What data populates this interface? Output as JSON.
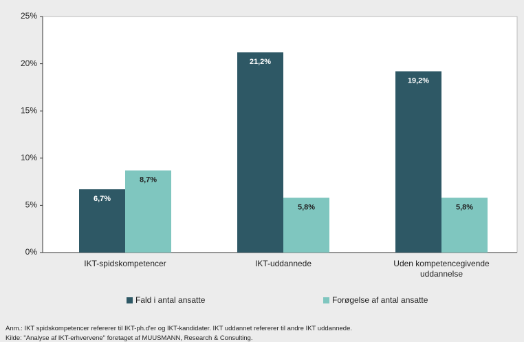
{
  "chart_data": {
    "type": "bar",
    "categories": [
      "IKT-spidskompetencer",
      "IKT-uddannede",
      "Uden kompetencegivende uddannelse"
    ],
    "series": [
      {
        "name": "Fald i antal ansatte",
        "color": "#2e5865",
        "values": [
          6.7,
          21.2,
          19.2
        ],
        "value_labels": [
          "6,7%",
          "21,2%",
          "19,2%"
        ]
      },
      {
        "name": "Forøgelse af antal ansatte",
        "color": "#7fc6bf",
        "values": [
          8.7,
          5.8,
          5.8
        ],
        "value_labels": [
          "8,7%",
          "5,8%",
          "5,8%"
        ]
      }
    ],
    "ylim": [
      0,
      25
    ],
    "yticks": [
      {
        "value": 0,
        "label": "0%"
      },
      {
        "value": 5,
        "label": "5%"
      },
      {
        "value": 10,
        "label": "10%"
      },
      {
        "value": 15,
        "label": "15%"
      },
      {
        "value": 20,
        "label": "20%"
      },
      {
        "value": 25,
        "label": "25%"
      }
    ],
    "legend": "bottom",
    "notes": [
      "Anm.: IKT spidskompetencer  refererer til IKT-ph.d'er og IKT-kandidater. IKT uddannet refererer til andre IKT uddannede.",
      "Kilde:  \"Analyse af IKT-erhvervene\" foretaget af MUUSMANN, Research & Consulting."
    ]
  }
}
